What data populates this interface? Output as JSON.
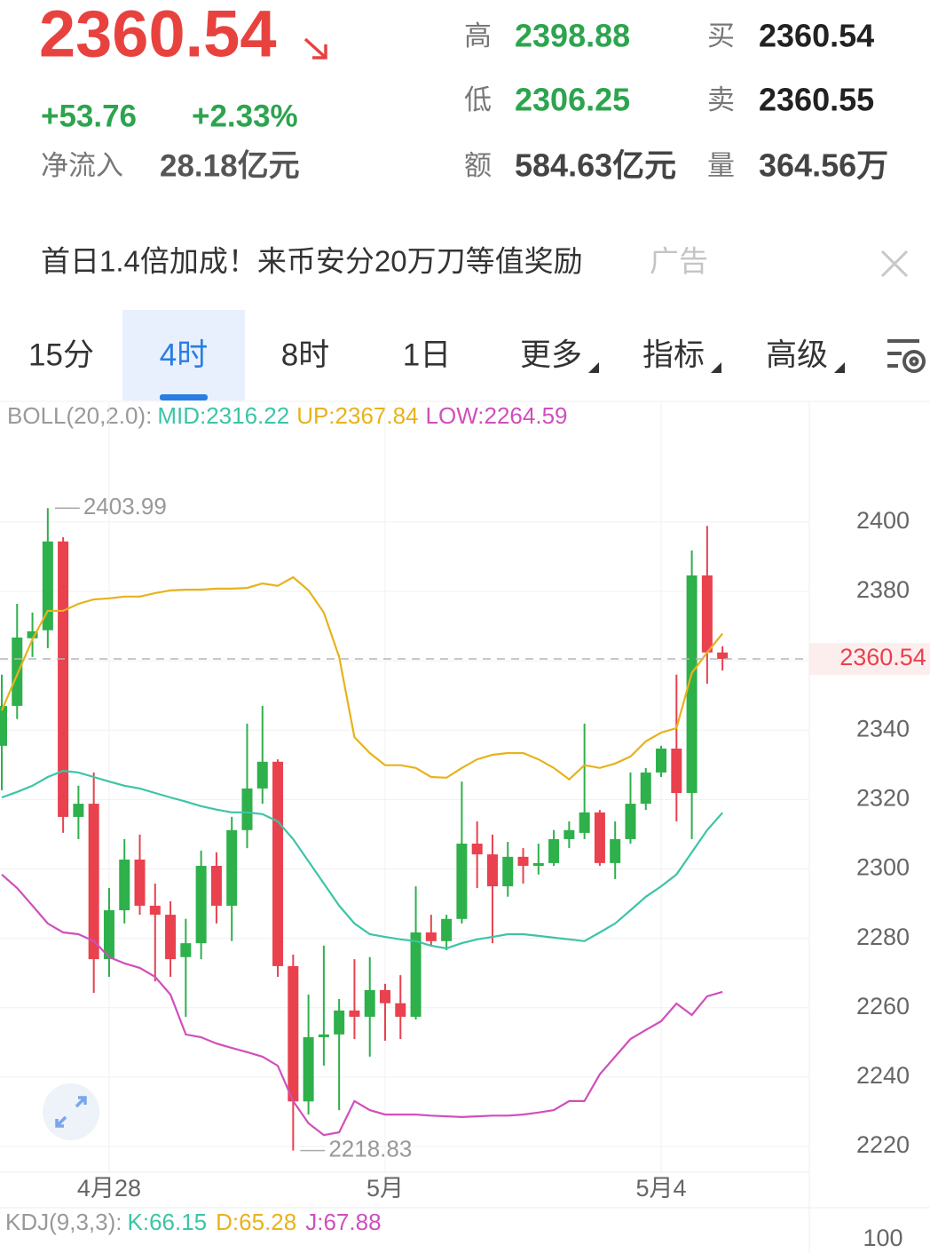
{
  "header": {
    "price": "2360.54",
    "change": "+53.76",
    "change_pct": "+2.33%",
    "inflow_label": "净流入",
    "inflow": "28.18亿元",
    "stats": [
      {
        "label": "高",
        "value": "2398.88",
        "color": "#2da44e"
      },
      {
        "label": "低",
        "value": "2306.25",
        "color": "#2da44e"
      },
      {
        "label": "额",
        "value": "584.63亿元",
        "color": "#444444"
      },
      {
        "label": "买",
        "value": "2360.54",
        "color": "#222222"
      },
      {
        "label": "卖",
        "value": "2360.55",
        "color": "#222222"
      },
      {
        "label": "量",
        "value": "364.56万",
        "color": "#444444"
      }
    ]
  },
  "ad": {
    "text": "首日1.4倍加成！来币安分20万刀等值奖励",
    "tag": "广告"
  },
  "tabs": [
    "15分",
    "4时",
    "8时",
    "1日",
    "更多",
    "指标",
    "高级"
  ],
  "active_tab": 1,
  "dropdown": [
    false,
    false,
    false,
    false,
    true,
    true,
    true
  ],
  "chart_data": {
    "type": "candlestick",
    "indicator": "BOLL(20,2.0):",
    "categories": [
      null,
      null,
      null,
      null,
      null,
      null,
      null,
      "4月28",
      null,
      null,
      null,
      null,
      null,
      null,
      null,
      null,
      null,
      null,
      null,
      null,
      null,
      null,
      null,
      null,
      null,
      "5月",
      null,
      null,
      null,
      null,
      null,
      null,
      null,
      null,
      null,
      null,
      null,
      null,
      null,
      null,
      null,
      null,
      null,
      "5月4",
      null,
      null,
      null,
      null
    ],
    "open": [
      2335.5,
      2347,
      2366.5,
      2368.8,
      2394.4,
      2315,
      2318.8,
      2274,
      2288.1,
      2302.7,
      2289.4,
      2286.8,
      2274.6,
      2278.6,
      2300.9,
      2289.4,
      2311.2,
      2323.2,
      2330.9,
      2272,
      2233,
      2251.5,
      2252.3,
      2259.2,
      2257.4,
      2265.1,
      2261.3,
      2257.4,
      2281.7,
      2279.2,
      2285.6,
      2307.3,
      2304.2,
      2295,
      2303.5,
      2300.9,
      2301.7,
      2308.6,
      2310.4,
      2316.3,
      2301.7,
      2308.6,
      2318.8,
      2327.8,
      2334.7,
      2321.9,
      2384.6,
      2362.4
    ],
    "high": [
      2356,
      2376.4,
      2373.9,
      2403.99,
      2395.6,
      2324,
      2327.8,
      2294.5,
      2308.6,
      2309.9,
      2295.8,
      2290.7,
      2285.6,
      2305.3,
      2304.8,
      2315,
      2341.9,
      2347,
      2331.6,
      2275.3,
      2263.8,
      2277.9,
      2262.5,
      2274,
      2274.6,
      2266.9,
      2269.4,
      2295,
      2286.8,
      2286.8,
      2325.2,
      2313.7,
      2309.9,
      2307.8,
      2306,
      2307.3,
      2311.2,
      2313.7,
      2341.9,
      2317,
      2313.7,
      2327.8,
      2329.1,
      2335.5,
      2356,
      2391.8,
      2398.88,
      2364.2
    ],
    "low": [
      2322.7,
      2343.2,
      2361.1,
      2363.6,
      2310.4,
      2308.6,
      2264.3,
      2268.9,
      2284.3,
      2286.8,
      2267.6,
      2268.9,
      2257.4,
      2274,
      2284.3,
      2279.2,
      2306,
      2318.8,
      2268.9,
      2218.83,
      2229.2,
      2243.3,
      2230.5,
      2251,
      2245.9,
      2250.5,
      2251,
      2256.6,
      2277.9,
      2276.6,
      2284.3,
      2294.5,
      2278.6,
      2292,
      2295.8,
      2298.4,
      2300.9,
      2306,
      2308.6,
      2300.9,
      2297.1,
      2307.3,
      2317,
      2326.5,
      2313.7,
      2308.6,
      2353.4,
      2357.2
    ],
    "close": [
      2347,
      2366.7,
      2368.5,
      2394.4,
      2315,
      2318.8,
      2274,
      2288.1,
      2302.7,
      2289.4,
      2286.8,
      2274,
      2278.6,
      2300.9,
      2289.4,
      2311.2,
      2323.2,
      2330.9,
      2272,
      2233,
      2251.5,
      2252.3,
      2259.2,
      2257.4,
      2265.1,
      2261.3,
      2257.4,
      2281.7,
      2279.2,
      2285.6,
      2307.3,
      2304.2,
      2295,
      2303.5,
      2300.9,
      2301.7,
      2308.6,
      2311.2,
      2316.3,
      2301.7,
      2308.6,
      2318.8,
      2327.8,
      2334.7,
      2321.9,
      2384.6,
      2362.4,
      2360.54
    ],
    "up_color": "#2eb04b",
    "down_color": "#e9414e",
    "series": [
      {
        "name": "MID:",
        "color": "#3cc4a6",
        "values": [
          2320.6,
          2322.2,
          2324,
          2326.5,
          2328.3,
          2327.8,
          2326.5,
          2325.2,
          2324,
          2323.2,
          2321.9,
          2320.6,
          2319.4,
          2318.1,
          2317.1,
          2316.3,
          2316.3,
          2315.8,
          2313.7,
          2308.6,
          2302.2,
          2295.8,
          2289.4,
          2284.3,
          2281.2,
          2280.4,
          2279.7,
          2279.2,
          2277.9,
          2277.1,
          2278.6,
          2279.7,
          2280.4,
          2281.2,
          2281.2,
          2280.7,
          2280.2,
          2279.7,
          2279.2,
          2281.7,
          2284.3,
          2288.1,
          2292,
          2295,
          2298.4,
          2304.8,
          2311.2,
          2316.22
        ]
      },
      {
        "name": "UP:",
        "color": "#e8b21c",
        "values": [
          2345.7,
          2356,
          2366.2,
          2374.4,
          2374.4,
          2376.4,
          2377.7,
          2378,
          2378.5,
          2378.5,
          2379.5,
          2380.3,
          2380.5,
          2380.5,
          2380.8,
          2380.8,
          2381,
          2382.3,
          2381.6,
          2384.1,
          2380.3,
          2373.9,
          2361.1,
          2338,
          2333.4,
          2329.9,
          2329.9,
          2329.1,
          2326.5,
          2326.3,
          2329.1,
          2331.6,
          2332.9,
          2333.4,
          2333.4,
          2331.6,
          2329.1,
          2325.8,
          2329.9,
          2329.1,
          2330.4,
          2332.4,
          2336.8,
          2339.3,
          2340.6,
          2356.5,
          2362.4,
          2367.84
        ]
      },
      {
        "name": "LOW:",
        "color": "#d04fbc",
        "values": [
          2298.4,
          2294.5,
          2289.4,
          2284.3,
          2281.7,
          2281.2,
          2279.2,
          2274.6,
          2272.8,
          2271.5,
          2268.9,
          2263.8,
          2252.3,
          2251.5,
          2249.7,
          2248.4,
          2247.2,
          2245.9,
          2243.3,
          2233.1,
          2226.7,
          2223.3,
          2224.1,
          2233.1,
          2230.5,
          2229.2,
          2229.2,
          2229.2,
          2228.9,
          2228.7,
          2228.5,
          2228.7,
          2228.9,
          2228.9,
          2229.2,
          2229.8,
          2230.5,
          2233.1,
          2233.1,
          2240.8,
          2245.9,
          2251,
          2253.6,
          2256.1,
          2261.2,
          2257.9,
          2263.3,
          2264.59
        ]
      }
    ],
    "ylim": [
      2212.6,
      2434
    ],
    "yticks": [
      2220,
      2240,
      2260,
      2280,
      2300,
      2320,
      2340,
      2360,
      2380,
      2400
    ],
    "grid": true
  },
  "kdj": {
    "label": "KDJ(9,3,3):",
    "series": [
      {
        "name": "K:",
        "value": 66.15,
        "color": "#3cc4a6"
      },
      {
        "name": "D:",
        "value": 65.28,
        "color": "#e8b21c"
      },
      {
        "name": "J:",
        "value": 67.88,
        "color": "#d04fbc"
      }
    ],
    "yticks": [
      100
    ]
  }
}
